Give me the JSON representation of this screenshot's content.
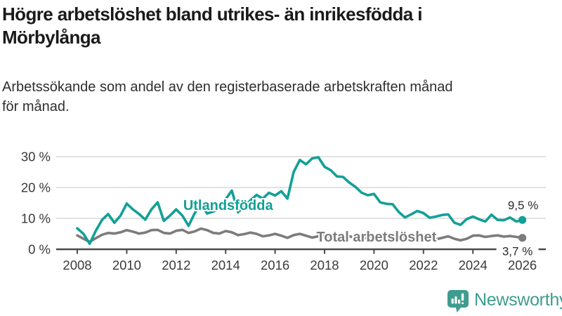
{
  "header": {
    "title": "Högre arbetslöshet bland utrikes- än inrikesfödda i\nMörbylånga",
    "subtitle": "Arbetssökande som andel av den registerbaserade arbetskraften månad\nför månad."
  },
  "chart_data": {
    "type": "line",
    "title": "Högre arbetslöshet bland utrikes- än inrikesfödda i Mörbylånga",
    "subtitle": "Arbetssökande som andel av den registerbaserade arbetskraften månad för månad.",
    "unit": "%",
    "x_start": 2008,
    "x_step": 0.25,
    "x_end": 2026,
    "xticks": [
      2008,
      2010,
      2012,
      2014,
      2016,
      2018,
      2020,
      2022,
      2024,
      2026
    ],
    "yticks": [
      0,
      10,
      20,
      30
    ],
    "ytick_labels": [
      "0 %",
      "10 %",
      "20 %",
      "30 %"
    ],
    "ylim": [
      0,
      32
    ],
    "grid": true,
    "legend_position": "inline-labels",
    "series": [
      {
        "name": "Utlandsfödda",
        "color": "#12a096",
        "end_label": "9,5 %",
        "end_value": 9.5,
        "label_pos": {
          "x": 2014.1,
          "y": 12.7
        },
        "values": [
          6.8,
          5.0,
          1.8,
          6.0,
          9.5,
          11.4,
          8.6,
          10.9,
          14.8,
          12.9,
          11.4,
          9.6,
          12.9,
          15.2,
          9.2,
          10.9,
          12.9,
          10.9,
          7.6,
          11.7,
          14.6,
          11.6,
          12.2,
          13.2,
          16.2,
          19.0,
          12.0,
          13.8,
          15.8,
          17.6,
          16.4,
          18.3,
          17.4,
          18.8,
          16.4,
          25.0,
          28.9,
          27.5,
          29.4,
          29.8,
          26.7,
          25.6,
          23.6,
          23.4,
          21.6,
          20.2,
          18.3,
          17.5,
          17.9,
          15.2,
          14.7,
          14.6,
          12.1,
          10.3,
          11.3,
          12.4,
          11.7,
          10.2,
          10.6,
          11.1,
          11.3,
          8.6,
          7.9,
          9.8,
          10.6,
          9.7,
          9.0,
          11.2,
          9.5,
          9.4,
          10.3,
          9.0,
          9.5
        ]
      },
      {
        "name": "Total arbetslöshet",
        "color": "#7c7c7c",
        "end_label": "3,7 %",
        "end_value": 3.7,
        "label_pos": {
          "x": 2020.1,
          "y": 2.5
        },
        "values": [
          4.5,
          3.4,
          2.4,
          3.6,
          4.7,
          5.3,
          5.1,
          5.5,
          6.2,
          5.7,
          5.1,
          5.4,
          6.2,
          6.3,
          5.3,
          5.1,
          6.0,
          6.3,
          5.3,
          5.8,
          6.7,
          6.2,
          5.3,
          5.1,
          5.9,
          5.5,
          4.6,
          4.9,
          5.4,
          5.0,
          4.2,
          4.5,
          5.0,
          4.4,
          3.7,
          4.6,
          5.0,
          4.4,
          3.8,
          4.2,
          4.5,
          4.0,
          3.4,
          3.8,
          4.2,
          3.8,
          3.4,
          3.8,
          4.2,
          4.6,
          4.4,
          4.3,
          4.4,
          4.0,
          3.6,
          3.8,
          4.0,
          3.6,
          3.2,
          3.7,
          4.2,
          3.4,
          2.9,
          3.4,
          4.4,
          4.5,
          4.0,
          4.3,
          4.5,
          4.1,
          4.3,
          4.0,
          3.7
        ]
      }
    ]
  },
  "footer": {
    "brand": "Newsworthy"
  },
  "colors": {
    "accent_teal": "#12a096",
    "series_gray": "#7c7c7c",
    "brand_teal": "#3f9c90",
    "grid": "#d8d8d8",
    "axis": "#4a4a4a",
    "tick_label": "#3a3a3a",
    "value_label": "#2a2a2a"
  }
}
